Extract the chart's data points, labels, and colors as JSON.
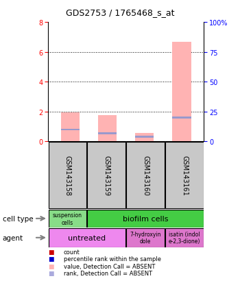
{
  "title": "GDS2753 / 1765468_s_at",
  "samples": [
    "GSM143158",
    "GSM143159",
    "GSM143160",
    "GSM143161"
  ],
  "bar_values_pink": [
    1.95,
    1.75,
    0.55,
    6.65
  ],
  "bar_values_blue": [
    0.85,
    0.6,
    0.35,
    1.65
  ],
  "ylim_left": [
    0,
    8
  ],
  "ylim_right": [
    0,
    100
  ],
  "yticks_left": [
    0,
    2,
    4,
    6,
    8
  ],
  "yticks_right": [
    0,
    25,
    50,
    75,
    100
  ],
  "ytick_labels_right": [
    "0",
    "25",
    "50",
    "75",
    "100%"
  ],
  "pink_color": "#ffb3b3",
  "blue_color": "#9999cc",
  "cell_type_colors": [
    "#88dd88",
    "#44cc44"
  ],
  "cell_type_labels": [
    "suspension\ncells",
    "biofilm cells"
  ],
  "agent_colors": [
    "#ee88ee",
    "#dd77cc",
    "#dd77cc"
  ],
  "agent_labels": [
    "untreated",
    "7-hydroxyin\ndole",
    "isatin (indol\ne-2,3-dione)"
  ],
  "legend_items": [
    {
      "label": "count",
      "color": "#cc0000"
    },
    {
      "label": "percentile rank within the sample",
      "color": "#0000cc"
    },
    {
      "label": "value, Detection Call = ABSENT",
      "color": "#ffb3b3"
    },
    {
      "label": "rank, Detection Call = ABSENT",
      "color": "#aaaadd"
    }
  ],
  "cell_type_label": "cell type",
  "agent_label": "agent",
  "bar_positions": [
    0,
    1,
    2,
    3
  ],
  "grey_box_color": "#c8c8c8"
}
